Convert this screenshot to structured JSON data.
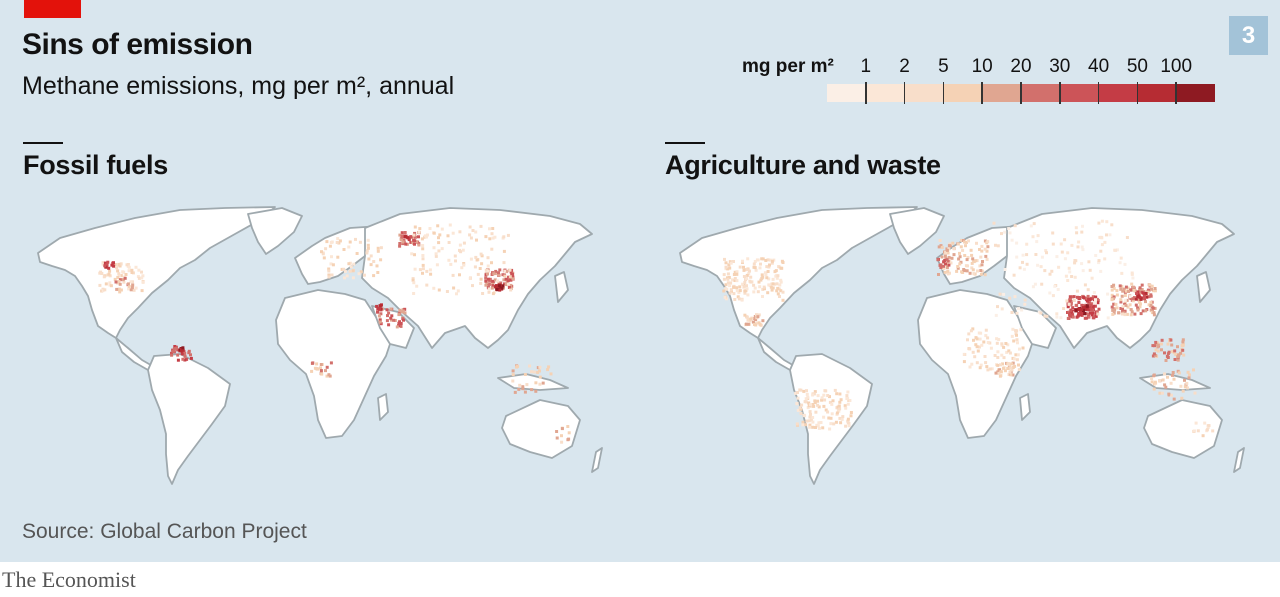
{
  "header": {
    "title": "Sins of emission",
    "subtitle": "Methane emissions, mg per m², annual",
    "chart_number": "3"
  },
  "legend": {
    "unit_label": "mg per m²",
    "ticks": [
      "1",
      "2",
      "5",
      "10",
      "20",
      "30",
      "40",
      "50",
      "100"
    ],
    "colors": [
      "#fbefe6",
      "#fbe7d7",
      "#f8deca",
      "#f5d2b5",
      "#e0a691",
      "#d2706c",
      "#cc5458",
      "#c43c45",
      "#b62c33",
      "#8e1a22"
    ]
  },
  "maps": [
    {
      "label": "Fossil fuels",
      "hotspots": [
        {
          "region": "China",
          "level": "high"
        },
        {
          "region": "Russia",
          "level": "high"
        },
        {
          "region": "Middle East",
          "level": "high"
        },
        {
          "region": "Venezuela",
          "level": "high"
        },
        {
          "region": "United States",
          "level": "medium"
        }
      ]
    },
    {
      "label": "Agriculture and waste",
      "hotspots": [
        {
          "region": "India",
          "level": "high"
        },
        {
          "region": "China",
          "level": "high"
        },
        {
          "region": "Europe",
          "level": "medium"
        },
        {
          "region": "South America",
          "level": "medium"
        },
        {
          "region": "Southeast Asia",
          "level": "medium"
        }
      ]
    }
  ],
  "footer": {
    "source": "Source: Global Carbon Project",
    "brand": "The Economist"
  },
  "colors": {
    "background": "#d9e6ee",
    "land": "#ffffff",
    "coast": "#9fa9ae",
    "accent_red": "#e3120b"
  }
}
